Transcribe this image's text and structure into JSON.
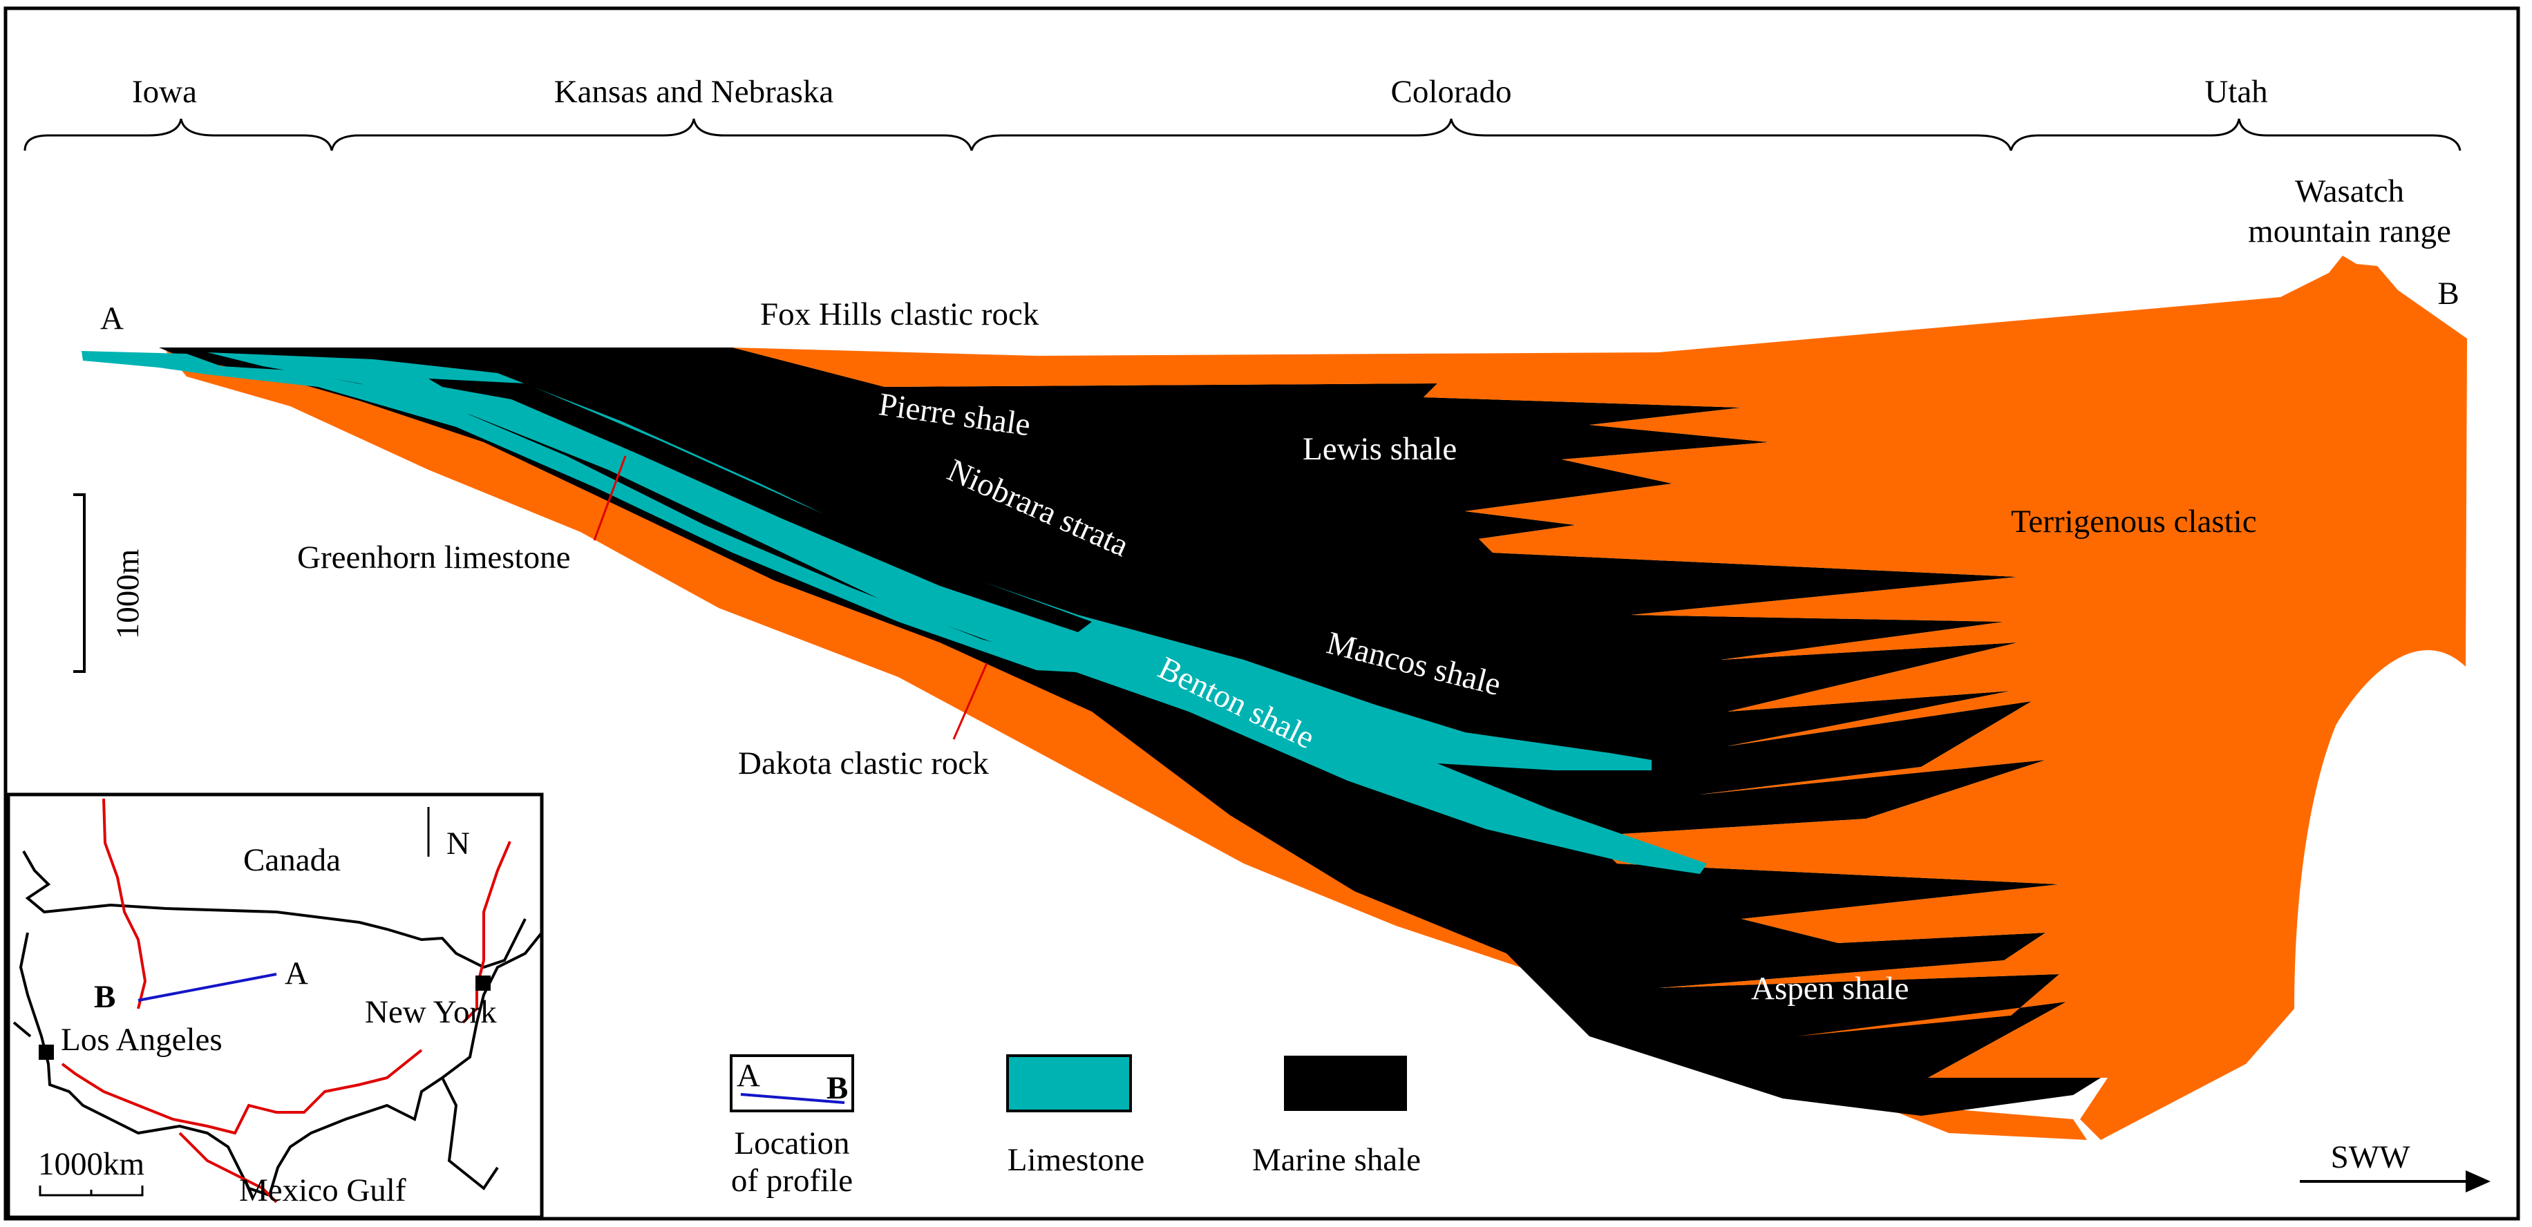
{
  "colors": {
    "terrigenous": "#ff6a00",
    "limestone": "#00b3b3",
    "marine_shale": "#000000",
    "fault_red": "#e00000",
    "profile_blue": "#1515c8"
  },
  "regions": [
    "Iowa",
    "Kansas and Nebraska",
    "Colorado",
    "Utah"
  ],
  "profile_ends": {
    "start": "A",
    "end": "B"
  },
  "mountain": {
    "line1": "Wasatch",
    "line2": "mountain range"
  },
  "scale_bar": {
    "label": "1000m"
  },
  "units": {
    "fox_hills": "Fox Hills  clastic rock",
    "pierre": "Pierre shale",
    "lewis": "Lewis shale",
    "niobrara": "Niobrara  strata",
    "greenhorn": "Greenhorn  limestone",
    "mancos": "Mancos shale",
    "benton": "Benton shale",
    "dakota": "Dakota clastic rock",
    "terrigenous": "Terrigenous clastic",
    "aspen": "Aspen  shale"
  },
  "direction": "SWW",
  "inset_map": {
    "canada": "Canada",
    "north": "N",
    "los_angeles": "Los Angeles",
    "new_york": "New York",
    "mexico_gulf": "Mexico Gulf",
    "scale": "1000km",
    "point_a": "A",
    "point_b": "B"
  },
  "legend": {
    "profile": {
      "line1": "Location",
      "line2": "of profile",
      "sym_a": "A",
      "sym_b": "B"
    },
    "limestone": "Limestone",
    "marine_shale": "Marine shale"
  }
}
